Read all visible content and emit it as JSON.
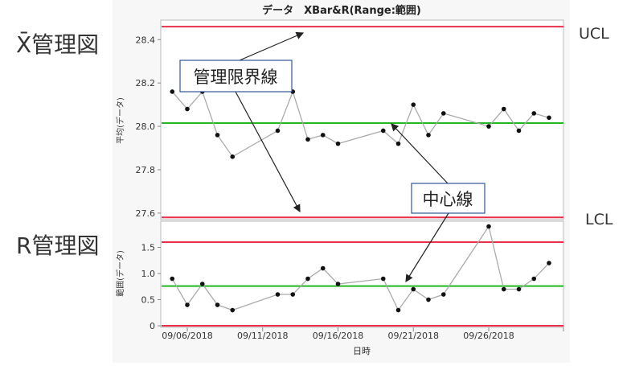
{
  "annotations": {
    "xbar_chart_label": "X̄管理図",
    "r_chart_label": "R管理図",
    "ucl_label": "UCL",
    "lcl_label": "LCL",
    "control_limit_callout": "管理限界線",
    "center_line_callout": "中心線"
  },
  "colors": {
    "limit": "#e8304a",
    "center": "#22b822",
    "line": "#aaaaaa",
    "point": "#111111"
  },
  "chart_data": [
    {
      "type": "line",
      "title": "データ　XBar&R(Range:範囲)",
      "xlabel": "日時",
      "ylabel": "平均(データ)",
      "ylim": [
        27.57,
        28.49
      ],
      "yticks": [
        "27.6",
        "27.8",
        "28.0",
        "28.2",
        "28.4"
      ],
      "ytick_values": [
        27.6,
        27.8,
        28.0,
        28.2,
        28.4
      ],
      "x": [
        "09/05/2018",
        "09/06/2018",
        "09/07/2018",
        "09/08/2018",
        "09/09/2018",
        "09/12/2018",
        "09/13/2018",
        "09/14/2018",
        "09/15/2018",
        "09/16/2018",
        "09/19/2018",
        "09/20/2018",
        "09/21/2018",
        "09/22/2018",
        "09/23/2018",
        "09/26/2018",
        "09/27/2018",
        "09/28/2018",
        "09/29/2018",
        "09/30/2018"
      ],
      "x_day_offsets": [
        0,
        1,
        2,
        3,
        4,
        7,
        8,
        9,
        10,
        11,
        14,
        15,
        16,
        17,
        18,
        21,
        22,
        23,
        24,
        25
      ],
      "values": [
        28.16,
        28.08,
        28.16,
        27.96,
        27.86,
        27.98,
        28.16,
        27.94,
        27.96,
        27.92,
        27.98,
        27.92,
        28.1,
        27.96,
        28.06,
        28.0,
        28.08,
        27.98,
        28.06,
        28.04
      ],
      "ucl": 28.46,
      "center": 28.015,
      "lcl": 27.58,
      "grid": false
    },
    {
      "type": "line",
      "xlabel": "日時",
      "ylabel": "範囲(データ)",
      "ylim": [
        -0.03,
        2.0
      ],
      "yticks": [
        "0",
        "0.5",
        "1.0",
        "1.5"
      ],
      "ytick_values": [
        0,
        0.5,
        1.0,
        1.5
      ],
      "xticks": [
        "09/06/2018",
        "09/11/2018",
        "09/16/2018",
        "09/21/2018",
        "09/26/2018"
      ],
      "xtick_day_offsets": [
        1,
        6,
        11,
        16,
        21
      ],
      "values": [
        0.9,
        0.4,
        0.8,
        0.4,
        0.3,
        0.6,
        0.6,
        0.9,
        1.1,
        0.8,
        0.9,
        0.3,
        0.7,
        0.5,
        0.6,
        1.9,
        0.7,
        0.7,
        0.9,
        1.2
      ],
      "ucl": 1.6,
      "center": 0.76,
      "lcl": 0.0,
      "grid": false
    }
  ]
}
